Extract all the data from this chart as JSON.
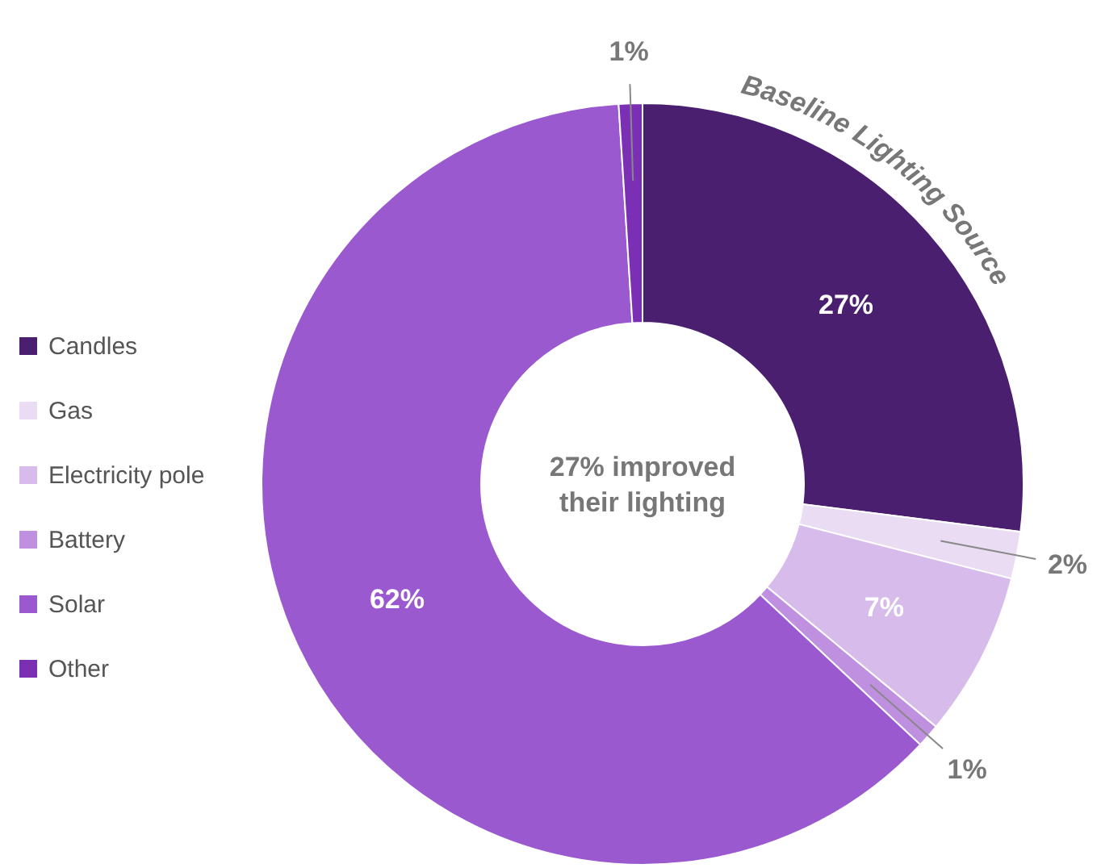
{
  "chart_data": {
    "type": "donut",
    "title": "Baseline Lighting Source",
    "categories": [
      "Candles",
      "Gas",
      "Electricity pole",
      "Battery",
      "Solar",
      "Other"
    ],
    "values": [
      27,
      2,
      7,
      1,
      62,
      1
    ],
    "value_labels": [
      "27%",
      "2%",
      "7%",
      "1%",
      "62%",
      "1%"
    ],
    "colors": [
      "#4b1f6f",
      "#eadcf3",
      "#d6bbeb",
      "#bf8fe0",
      "#9b59d0",
      "#7b2fb5"
    ],
    "annotations": [
      "27% improved their lighting"
    ],
    "legend": "left"
  }
}
